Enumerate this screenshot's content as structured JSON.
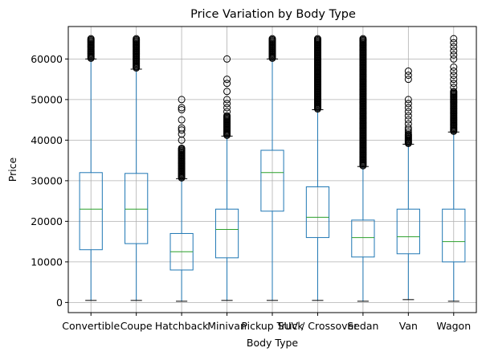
{
  "chart_data": {
    "type": "box",
    "title": "Price Variation by Body Type",
    "xlabel": "Body Type",
    "ylabel": "Price",
    "ylim": [
      -2500,
      68000
    ],
    "yticks": [
      0,
      10000,
      20000,
      30000,
      40000,
      50000,
      60000
    ],
    "ytick_labels": [
      "0",
      "10000",
      "20000",
      "30000",
      "40000",
      "50000",
      "60000"
    ],
    "grid": true,
    "colors": {
      "box": "#1f77b4",
      "median": "#2ca02c",
      "grid": "#b0b0b0"
    },
    "categories": [
      "Convertible",
      "Coupe",
      "Hatchback",
      "Minivan",
      "Pickup Truck",
      "SUV / Crossover",
      "Sedan",
      "Van",
      "Wagon"
    ],
    "boxes": [
      {
        "label": "Convertible",
        "whisker_low": 500,
        "q1": 13000,
        "median": 23000,
        "q3": 32000,
        "whisker_high": 60000,
        "outlier_range": [
          60200,
          65000
        ],
        "outliers": []
      },
      {
        "label": "Coupe",
        "whisker_low": 500,
        "q1": 14500,
        "median": 23000,
        "q3": 31800,
        "whisker_high": 57500,
        "outlier_range": [
          57800,
          65000
        ],
        "outliers": []
      },
      {
        "label": "Hatchback",
        "whisker_low": 300,
        "q1": 8000,
        "median": 12500,
        "q3": 17000,
        "whisker_high": 30500,
        "outlier_range": [
          30700,
          38000
        ],
        "outliers": [
          40000,
          41500,
          42500,
          43000,
          45000,
          47500,
          48000,
          50000
        ]
      },
      {
        "label": "Minivan",
        "whisker_low": 500,
        "q1": 11000,
        "median": 18000,
        "q3": 23000,
        "whisker_high": 41000,
        "outlier_range": [
          41200,
          46000
        ],
        "outliers": [
          47000,
          48000,
          49000,
          50000,
          52000,
          54000,
          55000,
          60000
        ]
      },
      {
        "label": "Pickup Truck",
        "whisker_low": 500,
        "q1": 22500,
        "median": 32000,
        "q3": 37500,
        "whisker_high": 60000,
        "outlier_range": [
          60200,
          65000
        ],
        "outliers": []
      },
      {
        "label": "SUV / Crossover",
        "whisker_low": 500,
        "q1": 16000,
        "median": 21000,
        "q3": 28500,
        "whisker_high": 47500,
        "outlier_range": [
          47700,
          65000
        ],
        "outliers": []
      },
      {
        "label": "Sedan",
        "whisker_low": 300,
        "q1": 11200,
        "median": 16000,
        "q3": 20300,
        "whisker_high": 33500,
        "outlier_range": [
          33700,
          65000
        ],
        "outliers": []
      },
      {
        "label": "Van",
        "whisker_low": 700,
        "q1": 12000,
        "median": 16200,
        "q3": 23000,
        "whisker_high": 39000,
        "outlier_range": [
          39200,
          41500
        ],
        "outliers": [
          42000,
          42500,
          43000,
          44000,
          45000,
          46000,
          47000,
          48000,
          49000,
          50000,
          55000,
          56000,
          57000
        ]
      },
      {
        "label": "Wagon",
        "whisker_low": 300,
        "q1": 10000,
        "median": 15000,
        "q3": 23000,
        "whisker_high": 42000,
        "outlier_range": [
          42200,
          52000
        ],
        "outliers": [
          53000,
          54000,
          55000,
          56000,
          57000,
          58000,
          60000,
          61000,
          62000,
          63000,
          64000,
          65000
        ]
      }
    ]
  }
}
